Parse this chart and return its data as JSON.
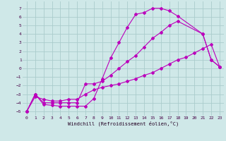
{
  "background_color": "#cfe8e8",
  "grid_color": "#aacccc",
  "line_color": "#bb00bb",
  "xlabel": "Windchill (Refroidissement éolien,°C)",
  "xlim": [
    -0.5,
    23.5
  ],
  "ylim": [
    -5.5,
    7.8
  ],
  "xticks": [
    0,
    1,
    2,
    3,
    4,
    5,
    6,
    7,
    8,
    9,
    10,
    11,
    12,
    13,
    14,
    15,
    16,
    17,
    18,
    19,
    20,
    21,
    22,
    23
  ],
  "yticks": [
    -5,
    -4,
    -3,
    -2,
    -1,
    0,
    1,
    2,
    3,
    4,
    5,
    6,
    7
  ],
  "curve1_x": [
    0,
    1,
    2,
    3,
    4,
    5,
    6,
    7,
    8,
    9,
    10,
    11,
    12,
    13,
    14,
    15,
    16,
    17,
    18,
    21,
    22,
    23
  ],
  "curve1_y": [
    -5.0,
    -3.0,
    -4.2,
    -4.3,
    -4.4,
    -4.4,
    -4.4,
    -4.4,
    -3.5,
    -1.2,
    1.2,
    3.0,
    4.8,
    6.3,
    6.5,
    7.0,
    7.0,
    6.7,
    6.1,
    4.0,
    1.0,
    0.2
  ],
  "curve2_x": [
    0,
    1,
    2,
    3,
    4,
    5,
    6,
    7,
    8,
    9,
    10,
    11,
    12,
    13,
    14,
    15,
    16,
    17,
    18,
    21,
    22,
    23
  ],
  "curve2_y": [
    -5.0,
    -3.0,
    -4.0,
    -4.0,
    -4.0,
    -4.0,
    -4.0,
    -1.8,
    -1.8,
    -1.5,
    -0.8,
    0.0,
    0.8,
    1.5,
    2.5,
    3.5,
    4.2,
    5.0,
    5.5,
    4.0,
    1.0,
    0.2
  ],
  "curve3_x": [
    0,
    1,
    2,
    3,
    4,
    5,
    6,
    7,
    8,
    9,
    10,
    11,
    12,
    13,
    14,
    15,
    16,
    17,
    18,
    19,
    20,
    21,
    22,
    23
  ],
  "curve3_y": [
    -5.0,
    -3.3,
    -3.6,
    -3.8,
    -3.8,
    -3.6,
    -3.6,
    -3.0,
    -2.5,
    -2.2,
    -2.0,
    -1.8,
    -1.5,
    -1.2,
    -0.8,
    -0.5,
    0.0,
    0.5,
    1.0,
    1.3,
    1.8,
    2.3,
    2.8,
    0.2
  ]
}
